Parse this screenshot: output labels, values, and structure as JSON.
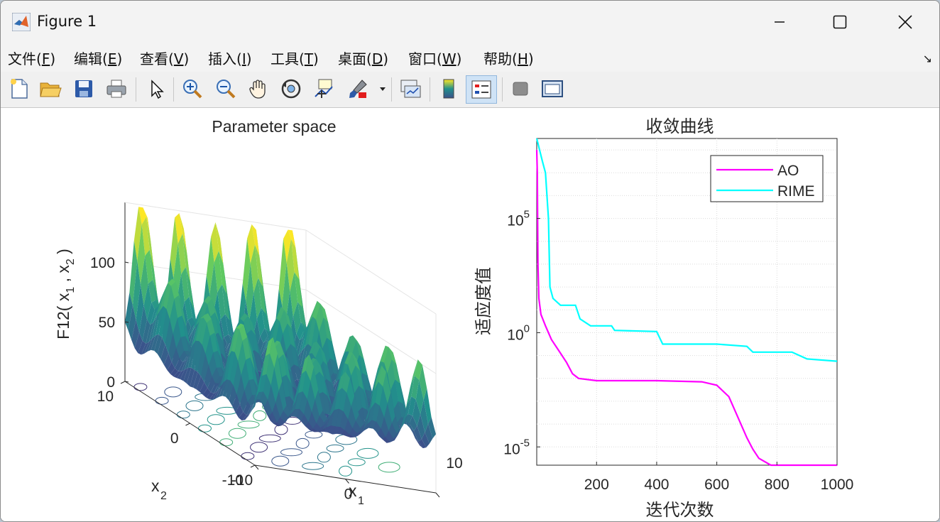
{
  "window": {
    "title": "Figure 1",
    "icon": "matlab-icon"
  },
  "window_controls": {
    "minimize": "—",
    "maximize": "☐",
    "close": "✕"
  },
  "menu": [
    {
      "label": "文件(",
      "key": "F",
      "end": ")"
    },
    {
      "label": "编辑(",
      "key": "E",
      "end": ")"
    },
    {
      "label": "查看(",
      "key": "V",
      "end": ")"
    },
    {
      "label": "插入(",
      "key": "I",
      "end": ")"
    },
    {
      "label": "工具(",
      "key": "T",
      "end": ")"
    },
    {
      "label": "桌面(",
      "key": "D",
      "end": ")"
    },
    {
      "label": "窗口(",
      "key": "W",
      "end": ")"
    },
    {
      "label": "帮助(",
      "key": "H",
      "end": ")"
    }
  ],
  "menu_corner": "↘",
  "toolbar_icons": [
    "new-file-icon",
    "open-folder-icon",
    "save-icon",
    "print-icon",
    "pointer-icon",
    "zoom-in-icon",
    "zoom-out-icon",
    "pan-hand-icon",
    "rotate-3d-icon",
    "data-cursor-icon",
    "brush-icon",
    "link-plot-icon",
    "colorbar-icon",
    "legend-icon",
    "hide-tools-icon",
    "dock-icon"
  ],
  "surface_plot": {
    "title": "Parameter space",
    "zlabel": "F12( x",
    "zlabel_sub1": "1",
    "zlabel_mid": " , x",
    "zlabel_sub2": "2",
    "zlabel_end": " )",
    "z_ticks": [
      "100",
      "50",
      "0"
    ],
    "x1_label": "x",
    "x1_sub": "1",
    "x2_label": "x",
    "x2_sub": "2",
    "x1_ticks": [
      "-10",
      "0",
      "10"
    ],
    "x2_ticks": [
      "10",
      "0",
      "-10"
    ],
    "colormap": [
      "#440154",
      "#3b528b",
      "#21918c",
      "#5ec962",
      "#fde725"
    ]
  },
  "chart_data": {
    "type": "line",
    "title": "收敛曲线",
    "xlabel": "迭代次数",
    "ylabel": "适应度值",
    "yscale": "log",
    "xlim": [
      1,
      1000
    ],
    "ylim_exp": [
      -5.8,
      8.5
    ],
    "x_ticks": [
      "200",
      "400",
      "600",
      "800",
      "1000"
    ],
    "y_ticks": [
      {
        "base": "10",
        "exp": "5",
        "value_exp": 5
      },
      {
        "base": "10",
        "exp": "0",
        "value_exp": 0
      },
      {
        "base": "10",
        "exp": "-5",
        "value_exp": -5
      }
    ],
    "grid": true,
    "legend_position": "top-right",
    "series": [
      {
        "name": "AO",
        "color": "#ff00ff",
        "log10_points": [
          [
            1,
            8.0
          ],
          [
            3,
            7.0
          ],
          [
            5,
            3.0
          ],
          [
            8,
            1.5
          ],
          [
            15,
            0.8
          ],
          [
            30,
            0.3
          ],
          [
            50,
            -0.3
          ],
          [
            80,
            -0.9
          ],
          [
            100,
            -1.3
          ],
          [
            120,
            -1.8
          ],
          [
            140,
            -2.0
          ],
          [
            200,
            -2.1
          ],
          [
            400,
            -2.1
          ],
          [
            550,
            -2.15
          ],
          [
            600,
            -2.3
          ],
          [
            640,
            -2.8
          ],
          [
            670,
            -3.7
          ],
          [
            700,
            -4.6
          ],
          [
            720,
            -5.1
          ],
          [
            740,
            -5.5
          ],
          [
            780,
            -5.8
          ],
          [
            1000,
            -5.8
          ]
        ]
      },
      {
        "name": "RIME",
        "color": "#00ffff",
        "log10_points": [
          [
            1,
            8.5
          ],
          [
            20,
            7.5
          ],
          [
            30,
            7.0
          ],
          [
            40,
            5.0
          ],
          [
            45,
            2.0
          ],
          [
            55,
            1.5
          ],
          [
            80,
            1.2
          ],
          [
            130,
            1.2
          ],
          [
            145,
            0.6
          ],
          [
            180,
            0.3
          ],
          [
            250,
            0.3
          ],
          [
            260,
            0.1
          ],
          [
            400,
            0.05
          ],
          [
            420,
            -0.5
          ],
          [
            600,
            -0.5
          ],
          [
            700,
            -0.6
          ],
          [
            720,
            -0.85
          ],
          [
            850,
            -0.85
          ],
          [
            900,
            -1.15
          ],
          [
            1000,
            -1.25
          ]
        ]
      }
    ]
  }
}
